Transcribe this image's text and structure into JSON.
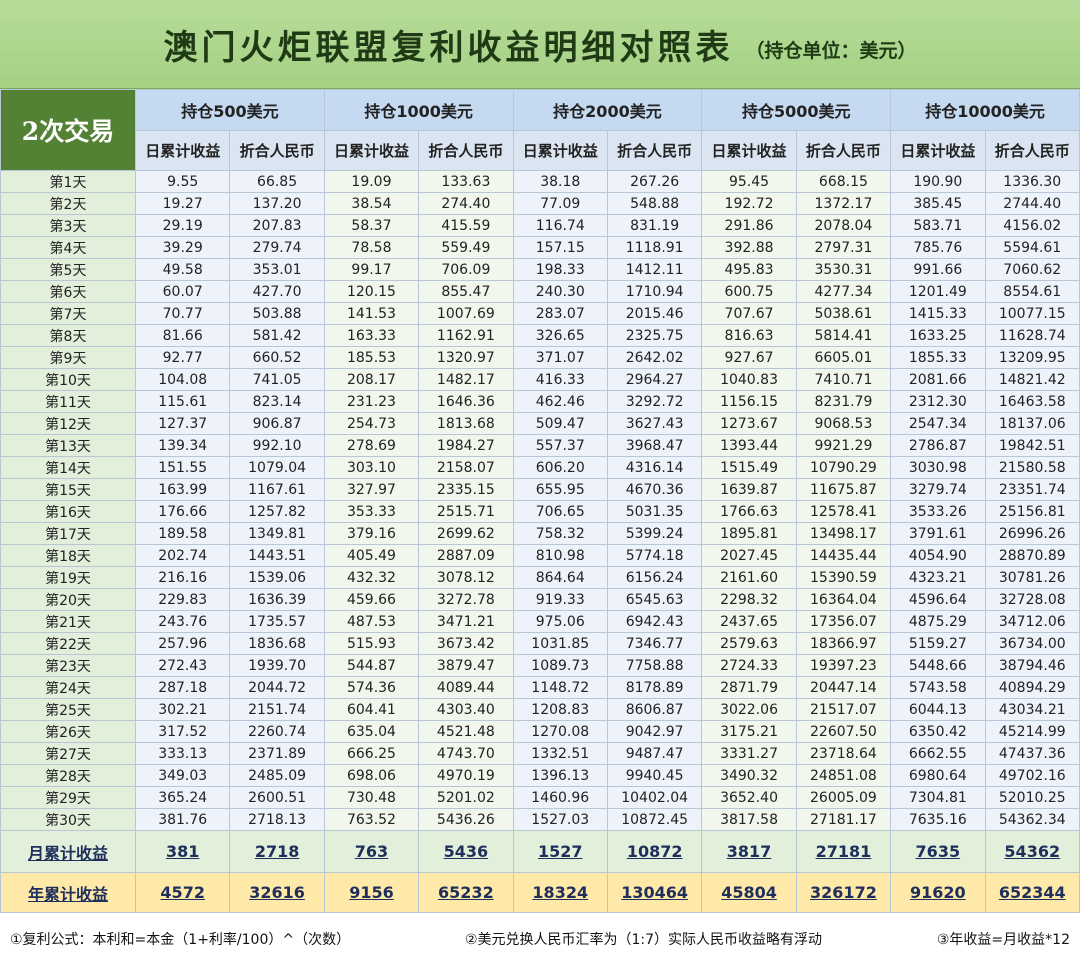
{
  "title": "澳门火炬联盟复利收益明细对照表",
  "subtitle": "（持仓单位：美元）",
  "table": {
    "corner": "2次交易",
    "groups": [
      "持仓500美元",
      "持仓1000美元",
      "持仓2000美元",
      "持仓5000美元",
      "持仓10000美元"
    ],
    "subheaders": [
      "日累计收益",
      "折合人民币",
      "日累计收益",
      "折合人民币",
      "日累计收益",
      "折合人民币",
      "日累计收益",
      "折合人民币",
      "日累计收益",
      "折合人民币"
    ],
    "rows": [
      {
        "label": "第1天",
        "values": [
          "9.55",
          "66.85",
          "19.09",
          "133.63",
          "38.18",
          "267.26",
          "95.45",
          "668.15",
          "190.90",
          "1336.30"
        ]
      },
      {
        "label": "第2天",
        "values": [
          "19.27",
          "137.20",
          "38.54",
          "274.40",
          "77.09",
          "548.88",
          "192.72",
          "1372.17",
          "385.45",
          "2744.40"
        ]
      },
      {
        "label": "第3天",
        "values": [
          "29.19",
          "207.83",
          "58.37",
          "415.59",
          "116.74",
          "831.19",
          "291.86",
          "2078.04",
          "583.71",
          "4156.02"
        ]
      },
      {
        "label": "第4天",
        "values": [
          "39.29",
          "279.74",
          "78.58",
          "559.49",
          "157.15",
          "1118.91",
          "392.88",
          "2797.31",
          "785.76",
          "5594.61"
        ]
      },
      {
        "label": "第5天",
        "values": [
          "49.58",
          "353.01",
          "99.17",
          "706.09",
          "198.33",
          "1412.11",
          "495.83",
          "3530.31",
          "991.66",
          "7060.62"
        ]
      },
      {
        "label": "第6天",
        "values": [
          "60.07",
          "427.70",
          "120.15",
          "855.47",
          "240.30",
          "1710.94",
          "600.75",
          "4277.34",
          "1201.49",
          "8554.61"
        ]
      },
      {
        "label": "第7天",
        "values": [
          "70.77",
          "503.88",
          "141.53",
          "1007.69",
          "283.07",
          "2015.46",
          "707.67",
          "5038.61",
          "1415.33",
          "10077.15"
        ]
      },
      {
        "label": "第8天",
        "values": [
          "81.66",
          "581.42",
          "163.33",
          "1162.91",
          "326.65",
          "2325.75",
          "816.63",
          "5814.41",
          "1633.25",
          "11628.74"
        ]
      },
      {
        "label": "第9天",
        "values": [
          "92.77",
          "660.52",
          "185.53",
          "1320.97",
          "371.07",
          "2642.02",
          "927.67",
          "6605.01",
          "1855.33",
          "13209.95"
        ]
      },
      {
        "label": "第10天",
        "values": [
          "104.08",
          "741.05",
          "208.17",
          "1482.17",
          "416.33",
          "2964.27",
          "1040.83",
          "7410.71",
          "2081.66",
          "14821.42"
        ]
      },
      {
        "label": "第11天",
        "values": [
          "115.61",
          "823.14",
          "231.23",
          "1646.36",
          "462.46",
          "3292.72",
          "1156.15",
          "8231.79",
          "2312.30",
          "16463.58"
        ]
      },
      {
        "label": "第12天",
        "values": [
          "127.37",
          "906.87",
          "254.73",
          "1813.68",
          "509.47",
          "3627.43",
          "1273.67",
          "9068.53",
          "2547.34",
          "18137.06"
        ]
      },
      {
        "label": "第13天",
        "values": [
          "139.34",
          "992.10",
          "278.69",
          "1984.27",
          "557.37",
          "3968.47",
          "1393.44",
          "9921.29",
          "2786.87",
          "19842.51"
        ]
      },
      {
        "label": "第14天",
        "values": [
          "151.55",
          "1079.04",
          "303.10",
          "2158.07",
          "606.20",
          "4316.14",
          "1515.49",
          "10790.29",
          "3030.98",
          "21580.58"
        ]
      },
      {
        "label": "第15天",
        "values": [
          "163.99",
          "1167.61",
          "327.97",
          "2335.15",
          "655.95",
          "4670.36",
          "1639.87",
          "11675.87",
          "3279.74",
          "23351.74"
        ]
      },
      {
        "label": "第16天",
        "values": [
          "176.66",
          "1257.82",
          "353.33",
          "2515.71",
          "706.65",
          "5031.35",
          "1766.63",
          "12578.41",
          "3533.26",
          "25156.81"
        ]
      },
      {
        "label": "第17天",
        "values": [
          "189.58",
          "1349.81",
          "379.16",
          "2699.62",
          "758.32",
          "5399.24",
          "1895.81",
          "13498.17",
          "3791.61",
          "26996.26"
        ]
      },
      {
        "label": "第18天",
        "values": [
          "202.74",
          "1443.51",
          "405.49",
          "2887.09",
          "810.98",
          "5774.18",
          "2027.45",
          "14435.44",
          "4054.90",
          "28870.89"
        ]
      },
      {
        "label": "第19天",
        "values": [
          "216.16",
          "1539.06",
          "432.32",
          "3078.12",
          "864.64",
          "6156.24",
          "2161.60",
          "15390.59",
          "4323.21",
          "30781.26"
        ]
      },
      {
        "label": "第20天",
        "values": [
          "229.83",
          "1636.39",
          "459.66",
          "3272.78",
          "919.33",
          "6545.63",
          "2298.32",
          "16364.04",
          "4596.64",
          "32728.08"
        ]
      },
      {
        "label": "第21天",
        "values": [
          "243.76",
          "1735.57",
          "487.53",
          "3471.21",
          "975.06",
          "6942.43",
          "2437.65",
          "17356.07",
          "4875.29",
          "34712.06"
        ]
      },
      {
        "label": "第22天",
        "values": [
          "257.96",
          "1836.68",
          "515.93",
          "3673.42",
          "1031.85",
          "7346.77",
          "2579.63",
          "18366.97",
          "5159.27",
          "36734.00"
        ]
      },
      {
        "label": "第23天",
        "values": [
          "272.43",
          "1939.70",
          "544.87",
          "3879.47",
          "1089.73",
          "7758.88",
          "2724.33",
          "19397.23",
          "5448.66",
          "38794.46"
        ]
      },
      {
        "label": "第24天",
        "values": [
          "287.18",
          "2044.72",
          "574.36",
          "4089.44",
          "1148.72",
          "8178.89",
          "2871.79",
          "20447.14",
          "5743.58",
          "40894.29"
        ]
      },
      {
        "label": "第25天",
        "values": [
          "302.21",
          "2151.74",
          "604.41",
          "4303.40",
          "1208.83",
          "8606.87",
          "3022.06",
          "21517.07",
          "6044.13",
          "43034.21"
        ]
      },
      {
        "label": "第26天",
        "values": [
          "317.52",
          "2260.74",
          "635.04",
          "4521.48",
          "1270.08",
          "9042.97",
          "3175.21",
          "22607.50",
          "6350.42",
          "45214.99"
        ]
      },
      {
        "label": "第27天",
        "values": [
          "333.13",
          "2371.89",
          "666.25",
          "4743.70",
          "1332.51",
          "9487.47",
          "3331.27",
          "23718.64",
          "6662.55",
          "47437.36"
        ]
      },
      {
        "label": "第28天",
        "values": [
          "349.03",
          "2485.09",
          "698.06",
          "4970.19",
          "1396.13",
          "9940.45",
          "3490.32",
          "24851.08",
          "6980.64",
          "49702.16"
        ]
      },
      {
        "label": "第29天",
        "values": [
          "365.24",
          "2600.51",
          "730.48",
          "5201.02",
          "1460.96",
          "10402.04",
          "3652.40",
          "26005.09",
          "7304.81",
          "52010.25"
        ]
      },
      {
        "label": "第30天",
        "values": [
          "381.76",
          "2718.13",
          "763.52",
          "5436.26",
          "1527.03",
          "10872.45",
          "3817.58",
          "27181.17",
          "7635.16",
          "54362.34"
        ]
      }
    ],
    "monthly": {
      "label": "月累计收益",
      "values": [
        "381",
        "2718",
        "763",
        "5436",
        "1527",
        "10872",
        "3817",
        "27181",
        "7635",
        "54362"
      ]
    },
    "yearly": {
      "label": "年累计收益",
      "values": [
        "4572",
        "32616",
        "9156",
        "65232",
        "18324",
        "130464",
        "45804",
        "326172",
        "91620",
        "652344"
      ]
    }
  },
  "notes": [
    "①复利公式：本利和=本金（1+利率/100）^（次数）",
    "②美元兑换人民币汇率为（1:7）实际人民币收益略有浮动",
    "③年收益=月收益*12"
  ]
}
